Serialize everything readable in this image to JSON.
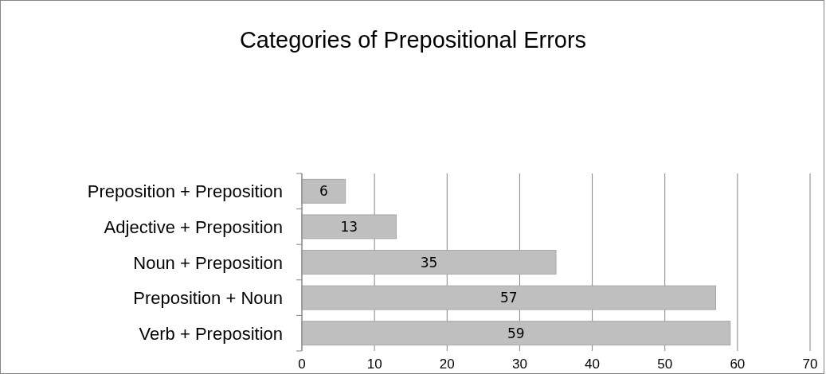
{
  "chart_data": {
    "type": "bar",
    "orientation": "horizontal",
    "title": "Categories of Prepositional Errors",
    "categories": [
      "Preposition + Preposition",
      "Adjective + Preposition",
      "Noun + Preposition",
      "Preposition + Noun",
      "Verb + Preposition"
    ],
    "values": [
      6,
      13,
      35,
      57,
      59
    ],
    "color": "#bfbfbf",
    "xlim": [
      0,
      70
    ],
    "xticks": [
      0,
      10,
      20,
      30,
      40,
      50,
      60,
      70
    ],
    "grid": "x",
    "data_labels": true
  }
}
